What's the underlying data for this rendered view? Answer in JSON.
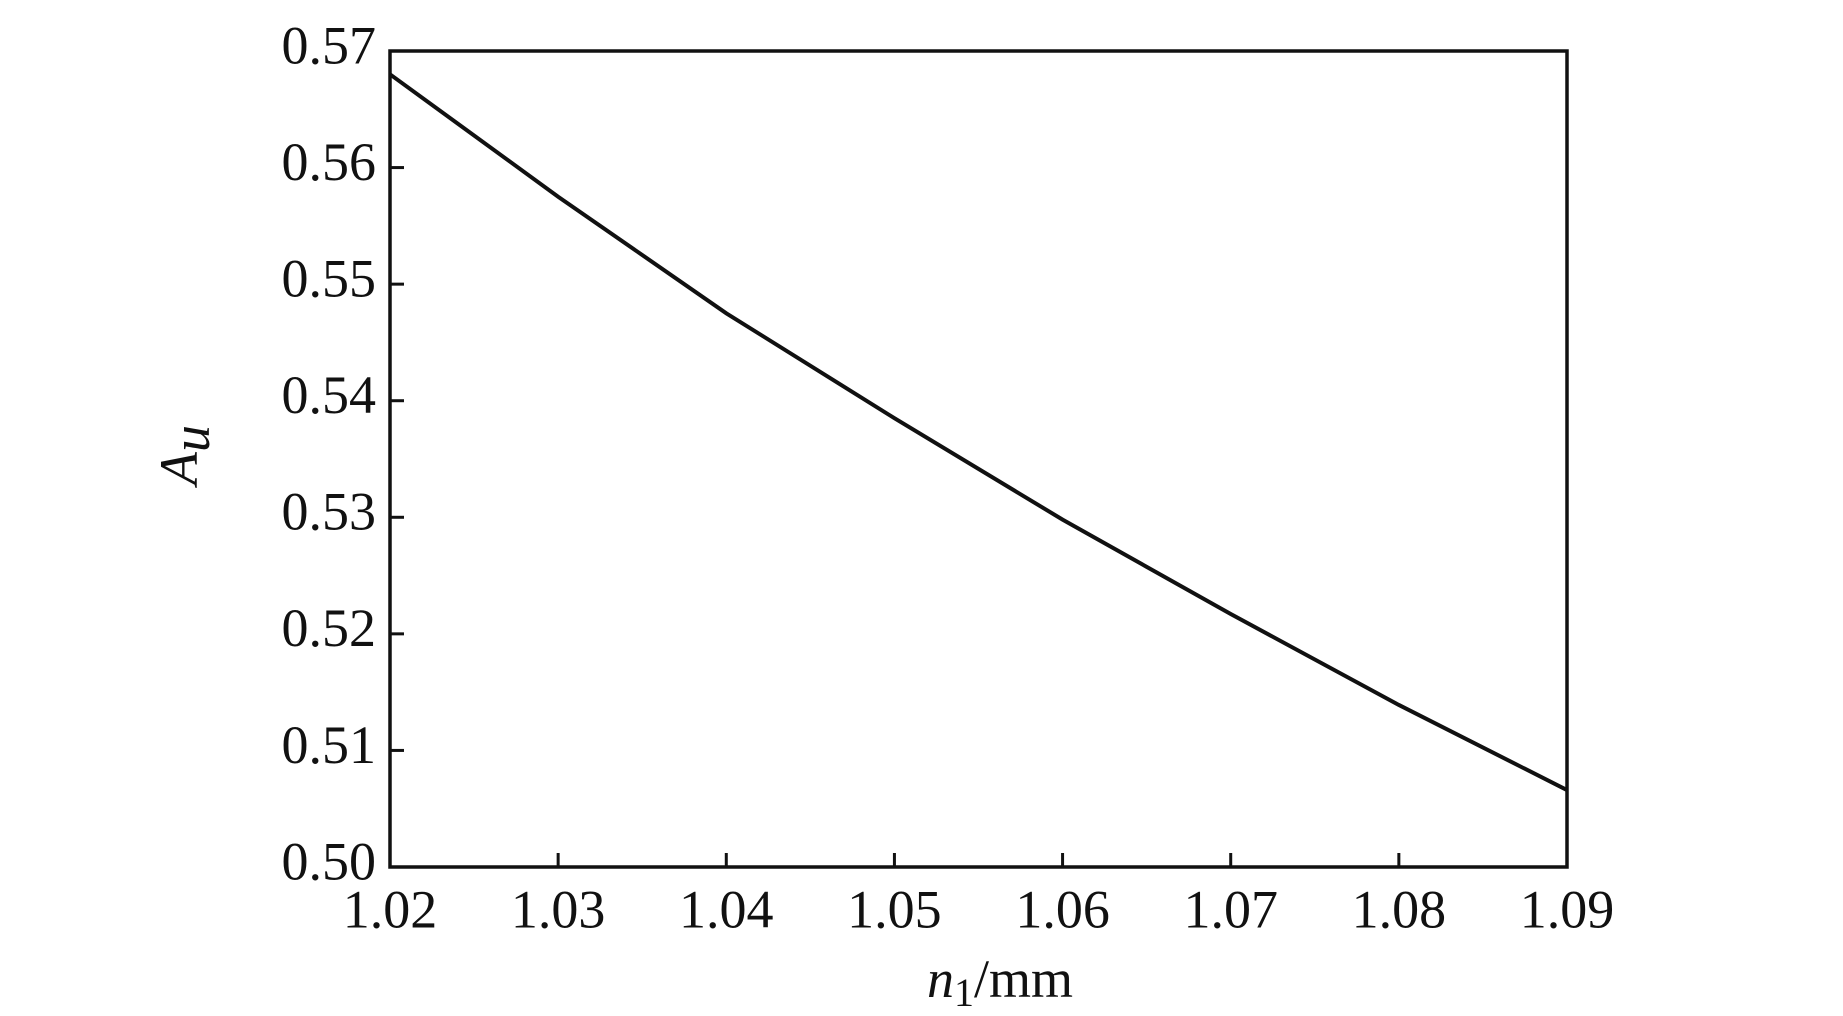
{
  "chart_data": {
    "type": "line",
    "xlabel": {
      "symbol": "n",
      "subscript": "1",
      "unit": "/mm"
    },
    "ylabel": {
      "symbol": "A",
      "subscript": "u"
    },
    "x": [
      1.02,
      1.03,
      1.04,
      1.05,
      1.06,
      1.07,
      1.08,
      1.09
    ],
    "series": [
      {
        "color": "#111111",
        "values": [
          0.568,
          0.5575,
          0.5475,
          0.5385,
          0.5298,
          0.5217,
          0.5139,
          0.5066
        ]
      }
    ],
    "xlim": [
      1.02,
      1.09
    ],
    "ylim": [
      0.5,
      0.57
    ],
    "xticks": [
      1.02,
      1.03,
      1.04,
      1.05,
      1.06,
      1.07,
      1.08,
      1.09
    ],
    "yticks": [
      {
        "value": 0.5,
        "label": "0.50"
      },
      0.51,
      0.52,
      0.53,
      0.54,
      0.55,
      0.56,
      0.57
    ],
    "grid": false
  }
}
